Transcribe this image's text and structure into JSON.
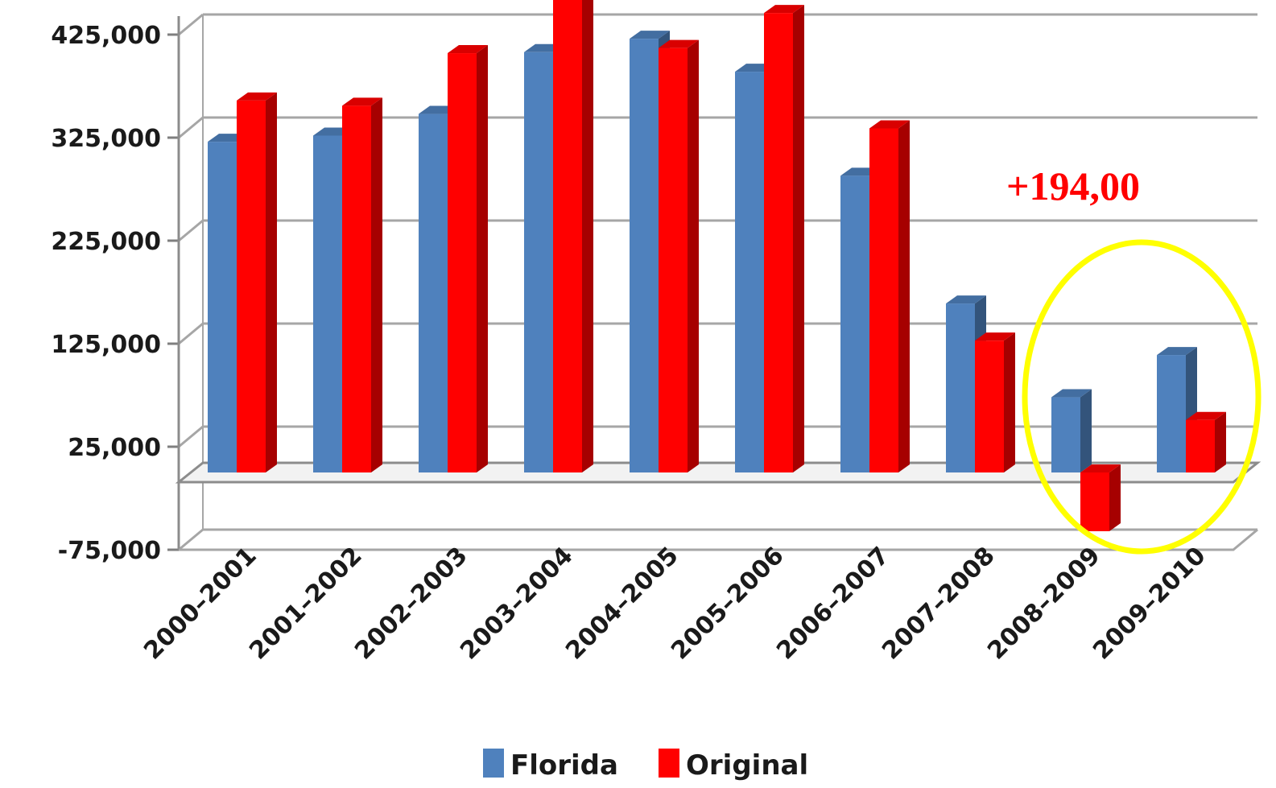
{
  "chart_data": {
    "type": "bar",
    "title": "",
    "xlabel": "",
    "ylabel": "",
    "categories": [
      "2000–2001",
      "2001–2002",
      "2002–2003",
      "2003–2004",
      "2004–2005",
      "2005–2006",
      "2006–2007",
      "2007–2008",
      "2008–2009",
      "2009–2010"
    ],
    "series": [
      {
        "name": "Florida",
        "color": "#4f81bd",
        "values": [
          321000,
          327000,
          348000,
          408000,
          421000,
          389000,
          288000,
          164000,
          73000,
          114000
        ]
      },
      {
        "name": "Original",
        "color": "#ff0000",
        "values": [
          361000,
          356000,
          407000,
          474000,
          412000,
          446000,
          334000,
          128000,
          -57000,
          51000
        ]
      }
    ],
    "y_ticks": [
      "425,000",
      "325,000",
      "225,000",
      "125,000",
      "25,000",
      "-75,000"
    ],
    "y_tick_values": [
      425000,
      325000,
      225000,
      125000,
      25000,
      -75000
    ],
    "ylim": [
      -75000,
      450000
    ],
    "grid": true,
    "legend_position": "bottom",
    "annotation": {
      "text": "+194,00",
      "color": "#ff0000",
      "highlight_color": "#ffff00"
    }
  }
}
